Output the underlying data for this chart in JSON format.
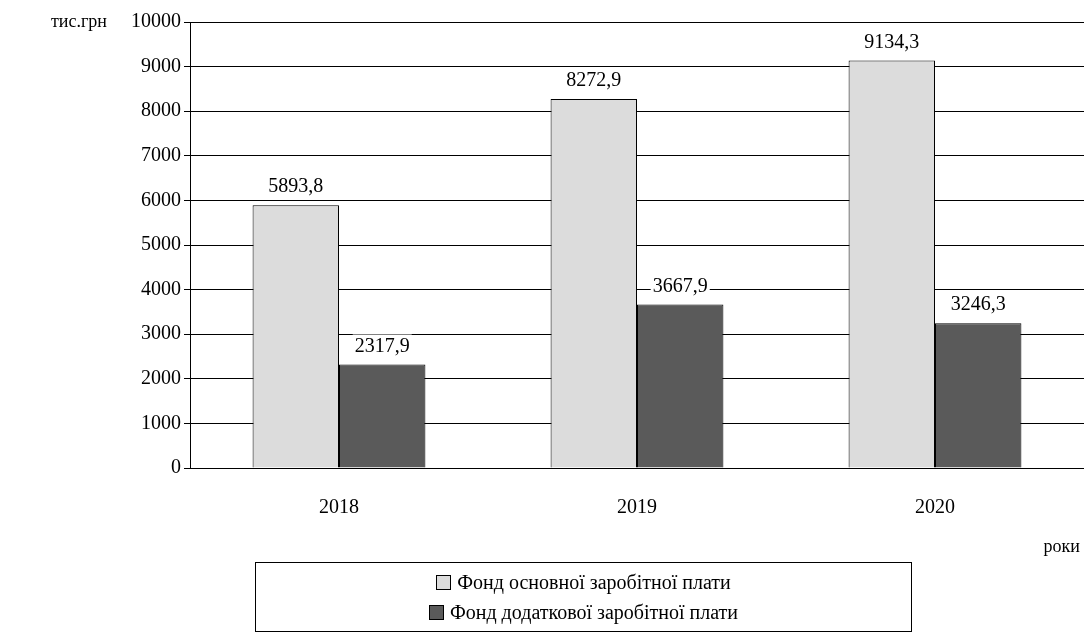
{
  "chart_data": {
    "type": "bar",
    "ylabel": "тис.грн",
    "xlabel": "роки",
    "categories": [
      "2018",
      "2019",
      "2020"
    ],
    "series": [
      {
        "name": "Фонд основної заробітної плати",
        "color": "#dcdcdc",
        "values": [
          5893.8,
          8272.9,
          9134.3
        ],
        "value_labels": [
          "5893,8",
          "8272,9",
          "9134,3"
        ]
      },
      {
        "name": "Фонд додаткової заробітної плати",
        "color": "#5a5a5a",
        "values": [
          2317.9,
          3667.9,
          3246.3
        ],
        "value_labels": [
          "2317,9",
          "3667,9",
          "3246,3"
        ]
      }
    ],
    "ylim": [
      0,
      10000
    ],
    "yticks": [
      0,
      1000,
      2000,
      3000,
      4000,
      5000,
      6000,
      7000,
      8000,
      9000,
      10000
    ],
    "grid": "y",
    "legend": "bottom"
  }
}
